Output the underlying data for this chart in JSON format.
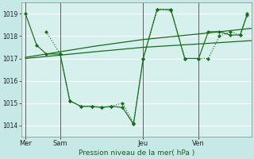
{
  "background_color": "#c6e8e6",
  "plot_bg_color": "#d6f0ee",
  "grid_color": "#ffffff",
  "line_color": "#1a6b1a",
  "title": "Pression niveau de la mer( hPa )",
  "day_labels": [
    "Mer",
    "Sam",
    "Jeu",
    "Ven"
  ],
  "day_positions": [
    0,
    2.5,
    8.5,
    12.5
  ],
  "ylim": [
    1013.5,
    1019.5
  ],
  "yticks": [
    1014,
    1015,
    1016,
    1017,
    1018,
    1019
  ],
  "xlim": [
    -0.3,
    16.3
  ],
  "series1_x": [
    0,
    0.8,
    1.5,
    2.5,
    3.2,
    4.0,
    4.8,
    5.5,
    6.2,
    7.0,
    7.8,
    8.5,
    9.5,
    10.5,
    11.5,
    12.5,
    13.2,
    14.0,
    14.8,
    15.5,
    16.0
  ],
  "series1_y": [
    1019.0,
    1017.6,
    1017.2,
    1017.2,
    1015.1,
    1014.85,
    1014.85,
    1014.8,
    1014.85,
    1014.8,
    1014.05,
    1017.0,
    1019.2,
    1019.2,
    1017.0,
    1017.0,
    1018.2,
    1018.2,
    1018.05,
    1018.05,
    1018.95
  ],
  "series2_x": [
    0,
    2.5,
    5,
    8.5,
    12.5,
    16.3
  ],
  "series2_y": [
    1017.05,
    1017.3,
    1017.55,
    1017.85,
    1018.1,
    1018.35
  ],
  "series3_x": [
    0,
    2.5,
    5,
    8.5,
    12.5,
    16.3
  ],
  "series3_y": [
    1017.0,
    1017.15,
    1017.3,
    1017.5,
    1017.65,
    1017.8
  ],
  "series4_x": [
    1.5,
    2.5,
    3.2,
    4.0,
    4.8,
    5.5,
    6.2,
    7.0,
    7.8,
    8.5,
    9.5,
    10.5,
    11.5,
    12.5,
    13.2,
    14.0,
    14.8,
    15.5,
    16.0
  ],
  "series4_y": [
    1018.2,
    1017.2,
    1015.1,
    1014.85,
    1014.85,
    1014.8,
    1014.85,
    1015.0,
    1014.1,
    1017.0,
    1019.2,
    1019.15,
    1017.0,
    1017.0,
    1017.0,
    1018.0,
    1018.2,
    1018.05,
    1019.0
  ]
}
